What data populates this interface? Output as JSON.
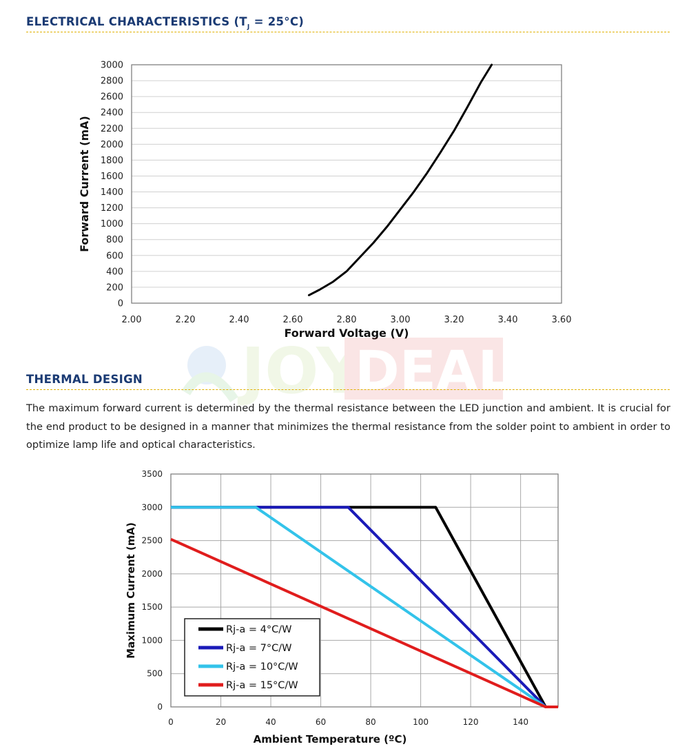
{
  "sections": {
    "electrical": {
      "title_main": "ELECTRICAL CHARACTERISTICS (T",
      "title_sub": "J",
      "title_tail": " = 25°C)"
    },
    "thermal": {
      "title": "THERMAL DESIGN",
      "paragraph": "The maximum forward current is determined by the thermal resistance between the LED junction and ambient. It is crucial for the end product to be designed in a manner that minimizes the thermal resistance from the solder point to ambient in order to optimize lamp life and optical characteristics."
    }
  },
  "watermark": {
    "text_a": "JOY",
    "text_b": "DEAL"
  },
  "chart_data": [
    {
      "type": "line",
      "title": "",
      "xlabel": "Forward Voltage (V)",
      "ylabel": "Forward Current (mA)",
      "xlim": [
        2.0,
        3.6
      ],
      "ylim": [
        0,
        3000
      ],
      "xticks": [
        "2.00",
        "2.20",
        "2.40",
        "2.60",
        "2.80",
        "3.00",
        "3.20",
        "3.40",
        "3.60"
      ],
      "yticks": [
        "0",
        "200",
        "400",
        "600",
        "800",
        "1000",
        "1200",
        "1400",
        "1600",
        "1800",
        "2000",
        "2200",
        "2400",
        "2600",
        "2800",
        "3000"
      ],
      "grid": "horizontal",
      "series": [
        {
          "color": "#000000",
          "x": [
            2.66,
            2.7,
            2.75,
            2.8,
            2.85,
            2.9,
            2.95,
            3.0,
            3.05,
            3.1,
            3.15,
            3.2,
            3.25,
            3.3,
            3.34
          ],
          "y": [
            100,
            170,
            270,
            400,
            580,
            760,
            960,
            1180,
            1400,
            1640,
            1900,
            2170,
            2470,
            2780,
            3000
          ]
        }
      ]
    },
    {
      "type": "line",
      "title": "",
      "xlabel": "Ambient Temperature (ºC)",
      "ylabel": "Maximum Current (mA)",
      "xlim": [
        0,
        155
      ],
      "ylim": [
        0,
        3500
      ],
      "xticks": [
        "0",
        "20",
        "40",
        "60",
        "80",
        "100",
        "120",
        "140"
      ],
      "yticks": [
        "0",
        "500",
        "1000",
        "1500",
        "2000",
        "2500",
        "3000",
        "3500"
      ],
      "grid": "both",
      "legend": "bottom-left",
      "series": [
        {
          "name": "Rj-a = 4°C/W",
          "color": "#000000",
          "x": [
            0,
            106,
            150,
            155
          ],
          "y": [
            3000,
            3000,
            0,
            0
          ]
        },
        {
          "name": "Rj-a = 7°C/W",
          "color": "#1a1ab8",
          "x": [
            0,
            71,
            150,
            155
          ],
          "y": [
            3000,
            3000,
            0,
            0
          ]
        },
        {
          "name": "Rj-a = 10°C/W",
          "color": "#33c3ea",
          "x": [
            0,
            34,
            150,
            155
          ],
          "y": [
            3000,
            3000,
            0,
            0
          ]
        },
        {
          "name": "Rj-a = 15°C/W",
          "color": "#e01d1d",
          "x": [
            0,
            150,
            155
          ],
          "y": [
            2520,
            0,
            0
          ]
        }
      ]
    }
  ]
}
